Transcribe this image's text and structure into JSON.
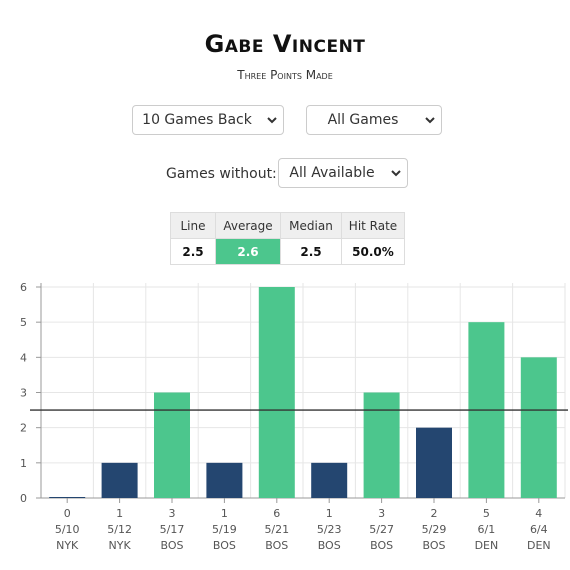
{
  "header": {
    "title": "Gabe Vincent",
    "subtitle": "Three Points Made"
  },
  "filters": {
    "games_back": "10 Games Back",
    "game_type": "All Games",
    "games_without_label": "Games without:",
    "games_without_value": "All Available"
  },
  "stats": {
    "headers": [
      "Line",
      "Average",
      "Median",
      "Hit Rate"
    ],
    "values": [
      "2.5",
      "2.6",
      "2.5",
      "50.0%"
    ]
  },
  "colors": {
    "over": "#4cc68d",
    "under": "#244670",
    "highlight": "#4cc68d"
  },
  "chart_data": {
    "type": "bar",
    "values": [
      0,
      1,
      3,
      1,
      6,
      1,
      3,
      2,
      5,
      4
    ],
    "dates": [
      "5/10",
      "5/12",
      "5/17",
      "5/19",
      "5/21",
      "5/23",
      "5/27",
      "5/29",
      "6/1",
      "6/4"
    ],
    "opponents": [
      "NYK",
      "NYK",
      "BOS",
      "BOS",
      "BOS",
      "BOS",
      "BOS",
      "BOS",
      "DEN",
      "DEN"
    ],
    "line": 2.5,
    "ylim": [
      0,
      6
    ],
    "yticks": [
      0,
      1,
      2,
      3,
      4,
      5,
      6
    ],
    "grid": true
  }
}
